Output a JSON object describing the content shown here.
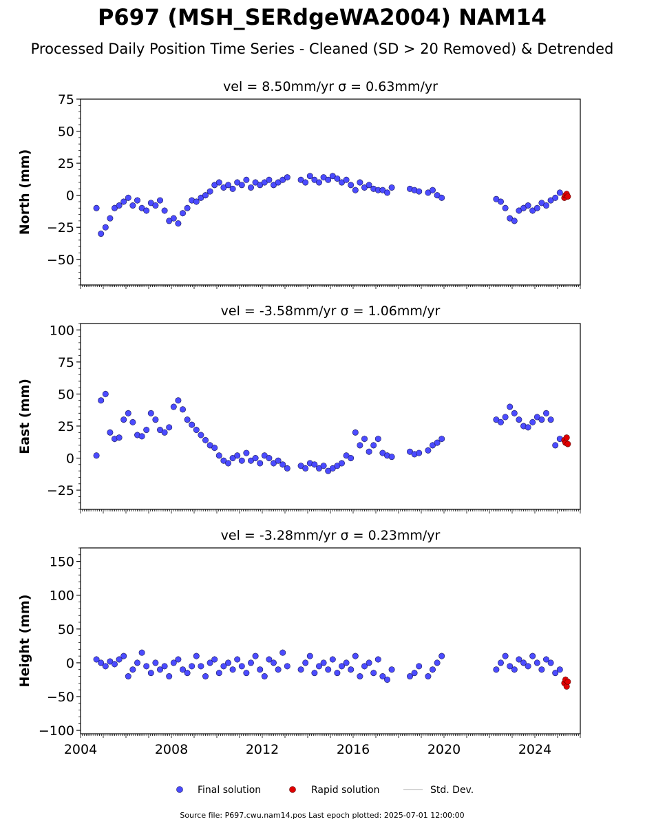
{
  "figure": {
    "title": "P697 (MSH_SERdgeWA2004) NAM14",
    "subtitle": "Processed Daily Position Time Series - Cleaned (SD > 20 Removed) & Detrended",
    "source_note": "Source file: P697.cwu.nam14.pos  Last epoch plotted: 2025-07-01 12:00:00"
  },
  "legend": {
    "placement": "bottom-center",
    "items": [
      {
        "label": "Final solution",
        "color": "#4b4bff"
      },
      {
        "label": "Rapid solution",
        "color": "#e00000"
      },
      {
        "label": "Std. Dev.",
        "color": "#c8c8c8"
      }
    ]
  },
  "colors": {
    "final": "#4b4bff",
    "final_edge": "#1a1a5a",
    "rapid": "#e00000",
    "rapid_edge": "#600000",
    "stddev": "#b4b4b4"
  },
  "chart_data": [
    {
      "type": "scatter",
      "panel": "north",
      "title": "vel = 8.50mm/yr   σ = 0.63mm/yr",
      "ylabel": "North (mm)",
      "xlim": [
        2004.0,
        2026.0
      ],
      "ylim": [
        -70,
        75
      ],
      "yticks": [
        -50,
        -25,
        0,
        25,
        50,
        75
      ],
      "ytick_labels": [
        "−50",
        "−25",
        "0",
        "25",
        "50",
        "75"
      ],
      "series": [
        {
          "name": "Final solution",
          "x": [
            2004.7,
            2004.9,
            2005.1,
            2005.3,
            2005.5,
            2005.7,
            2005.9,
            2006.1,
            2006.3,
            2006.5,
            2006.7,
            2006.9,
            2007.1,
            2007.3,
            2007.5,
            2007.7,
            2007.9,
            2008.1,
            2008.3,
            2008.5,
            2008.7,
            2008.9,
            2009.1,
            2009.3,
            2009.5,
            2009.7,
            2009.9,
            2010.1,
            2010.3,
            2010.5,
            2010.7,
            2010.9,
            2011.1,
            2011.3,
            2011.5,
            2011.7,
            2011.9,
            2012.1,
            2012.3,
            2012.5,
            2012.7,
            2012.9,
            2013.1,
            2013.7,
            2013.9,
            2014.1,
            2014.3,
            2014.5,
            2014.7,
            2014.9,
            2015.1,
            2015.3,
            2015.5,
            2015.7,
            2015.9,
            2016.1,
            2016.3,
            2016.5,
            2016.7,
            2016.9,
            2017.1,
            2017.3,
            2017.5,
            2017.7,
            2018.5,
            2018.7,
            2018.9,
            2019.3,
            2019.5,
            2019.7,
            2019.9,
            2022.3,
            2022.5,
            2022.7,
            2022.9,
            2023.1,
            2023.3,
            2023.5,
            2023.7,
            2023.9,
            2024.1,
            2024.3,
            2024.5,
            2024.7,
            2024.9,
            2025.1
          ],
          "y": [
            -10,
            -30,
            -25,
            -18,
            -10,
            -8,
            -5,
            -2,
            -8,
            -4,
            -10,
            -12,
            -6,
            -8,
            -4,
            -12,
            -20,
            -18,
            -22,
            -14,
            -10,
            -4,
            -5,
            -2,
            0,
            3,
            8,
            10,
            6,
            8,
            5,
            10,
            8,
            12,
            6,
            10,
            8,
            10,
            12,
            8,
            10,
            12,
            14,
            12,
            10,
            15,
            12,
            10,
            14,
            12,
            15,
            13,
            10,
            12,
            8,
            4,
            10,
            6,
            8,
            5,
            4,
            4,
            2,
            6,
            5,
            4,
            3,
            2,
            4,
            0,
            -2,
            -3,
            -5,
            -10,
            -18,
            -20,
            -12,
            -10,
            -8,
            -12,
            -10,
            -6,
            -8,
            -4,
            -2,
            2
          ]
        },
        {
          "name": "Rapid solution",
          "x": [
            2025.3,
            2025.35,
            2025.4,
            2025.45
          ],
          "y": [
            -2,
            0,
            1,
            -1
          ]
        }
      ]
    },
    {
      "type": "scatter",
      "panel": "east",
      "title": "vel = -3.58mm/yr   σ = 1.06mm/yr",
      "ylabel": "East (mm)",
      "xlim": [
        2004.0,
        2026.0
      ],
      "ylim": [
        -40,
        105
      ],
      "yticks": [
        -25,
        0,
        25,
        50,
        75,
        100
      ],
      "ytick_labels": [
        "−25",
        "0",
        "25",
        "50",
        "75",
        "100"
      ],
      "series": [
        {
          "name": "Final solution",
          "x": [
            2004.7,
            2004.9,
            2005.1,
            2005.3,
            2005.5,
            2005.7,
            2005.9,
            2006.1,
            2006.3,
            2006.5,
            2006.7,
            2006.9,
            2007.1,
            2007.3,
            2007.5,
            2007.7,
            2007.9,
            2008.1,
            2008.3,
            2008.5,
            2008.7,
            2008.9,
            2009.1,
            2009.3,
            2009.5,
            2009.7,
            2009.9,
            2010.1,
            2010.3,
            2010.5,
            2010.7,
            2010.9,
            2011.1,
            2011.3,
            2011.5,
            2011.7,
            2011.9,
            2012.1,
            2012.3,
            2012.5,
            2012.7,
            2012.9,
            2013.1,
            2013.7,
            2013.9,
            2014.1,
            2014.3,
            2014.5,
            2014.7,
            2014.9,
            2015.1,
            2015.3,
            2015.5,
            2015.7,
            2015.9,
            2016.1,
            2016.3,
            2016.5,
            2016.7,
            2016.9,
            2017.1,
            2017.3,
            2017.5,
            2017.7,
            2018.5,
            2018.7,
            2018.9,
            2019.3,
            2019.5,
            2019.7,
            2019.9,
            2022.3,
            2022.5,
            2022.7,
            2022.9,
            2023.1,
            2023.3,
            2023.5,
            2023.7,
            2023.9,
            2024.1,
            2024.3,
            2024.5,
            2024.7,
            2024.9,
            2025.1
          ],
          "y": [
            2,
            45,
            50,
            20,
            15,
            16,
            30,
            35,
            28,
            18,
            17,
            22,
            35,
            30,
            22,
            20,
            24,
            40,
            45,
            38,
            30,
            26,
            22,
            18,
            14,
            10,
            8,
            2,
            -2,
            -4,
            0,
            2,
            -2,
            4,
            -2,
            0,
            -4,
            2,
            0,
            -4,
            -2,
            -5,
            -8,
            -6,
            -8,
            -4,
            -5,
            -8,
            -6,
            -10,
            -8,
            -6,
            -4,
            2,
            0,
            20,
            10,
            15,
            5,
            10,
            15,
            4,
            2,
            1,
            5,
            3,
            4,
            6,
            10,
            12,
            15,
            30,
            28,
            32,
            40,
            35,
            30,
            25,
            24,
            28,
            32,
            30,
            35,
            30,
            10,
            15
          ]
        },
        {
          "name": "Rapid solution",
          "x": [
            2025.3,
            2025.35,
            2025.4,
            2025.45
          ],
          "y": [
            14,
            12,
            16,
            11
          ]
        }
      ]
    },
    {
      "type": "scatter",
      "panel": "height",
      "title": "vel = -3.28mm/yr   σ = 0.23mm/yr",
      "ylabel": "Height (mm)",
      "xlim": [
        2004.0,
        2026.0
      ],
      "ylim": [
        -105,
        170
      ],
      "yticks": [
        -100,
        -50,
        0,
        50,
        100,
        150
      ],
      "ytick_labels": [
        "−100",
        "−50",
        "0",
        "50",
        "100",
        "150"
      ],
      "xticks": [
        2004,
        2008,
        2012,
        2016,
        2020,
        2024
      ],
      "xtick_labels": [
        "2004",
        "2008",
        "2012",
        "2016",
        "2020",
        "2024"
      ],
      "series": [
        {
          "name": "Final solution",
          "x": [
            2004.7,
            2004.9,
            2005.1,
            2005.3,
            2005.5,
            2005.7,
            2005.9,
            2006.1,
            2006.3,
            2006.5,
            2006.7,
            2006.9,
            2007.1,
            2007.3,
            2007.5,
            2007.7,
            2007.9,
            2008.1,
            2008.3,
            2008.5,
            2008.7,
            2008.9,
            2009.1,
            2009.3,
            2009.5,
            2009.7,
            2009.9,
            2010.1,
            2010.3,
            2010.5,
            2010.7,
            2010.9,
            2011.1,
            2011.3,
            2011.5,
            2011.7,
            2011.9,
            2012.1,
            2012.3,
            2012.5,
            2012.7,
            2012.9,
            2013.1,
            2013.7,
            2013.9,
            2014.1,
            2014.3,
            2014.5,
            2014.7,
            2014.9,
            2015.1,
            2015.3,
            2015.5,
            2015.7,
            2015.9,
            2016.1,
            2016.3,
            2016.5,
            2016.7,
            2016.9,
            2017.1,
            2017.3,
            2017.5,
            2017.7,
            2018.5,
            2018.7,
            2018.9,
            2019.3,
            2019.5,
            2019.7,
            2019.9,
            2022.3,
            2022.5,
            2022.7,
            2022.9,
            2023.1,
            2023.3,
            2023.5,
            2023.7,
            2023.9,
            2024.1,
            2024.3,
            2024.5,
            2024.7,
            2024.9,
            2025.1
          ],
          "y": [
            5,
            0,
            -5,
            2,
            -2,
            5,
            10,
            -20,
            -10,
            0,
            15,
            -5,
            -15,
            0,
            -10,
            -5,
            -20,
            0,
            5,
            -10,
            -15,
            -5,
            10,
            -5,
            -20,
            0,
            5,
            -15,
            -5,
            0,
            -10,
            5,
            -5,
            -15,
            0,
            10,
            -10,
            -20,
            5,
            0,
            -10,
            15,
            -5,
            -10,
            0,
            10,
            -15,
            -5,
            0,
            -10,
            5,
            -15,
            -5,
            0,
            -10,
            10,
            -20,
            -5,
            0,
            -15,
            5,
            -20,
            -25,
            -10,
            -20,
            -15,
            -5,
            -20,
            -10,
            0,
            10,
            -10,
            0,
            10,
            -5,
            -10,
            5,
            0,
            -5,
            10,
            0,
            -10,
            5,
            0,
            -15,
            -10
          ]
        },
        {
          "name": "Rapid solution",
          "x": [
            2025.3,
            2025.35,
            2025.4,
            2025.45
          ],
          "y": [
            -30,
            -25,
            -35,
            -28
          ]
        }
      ]
    }
  ]
}
